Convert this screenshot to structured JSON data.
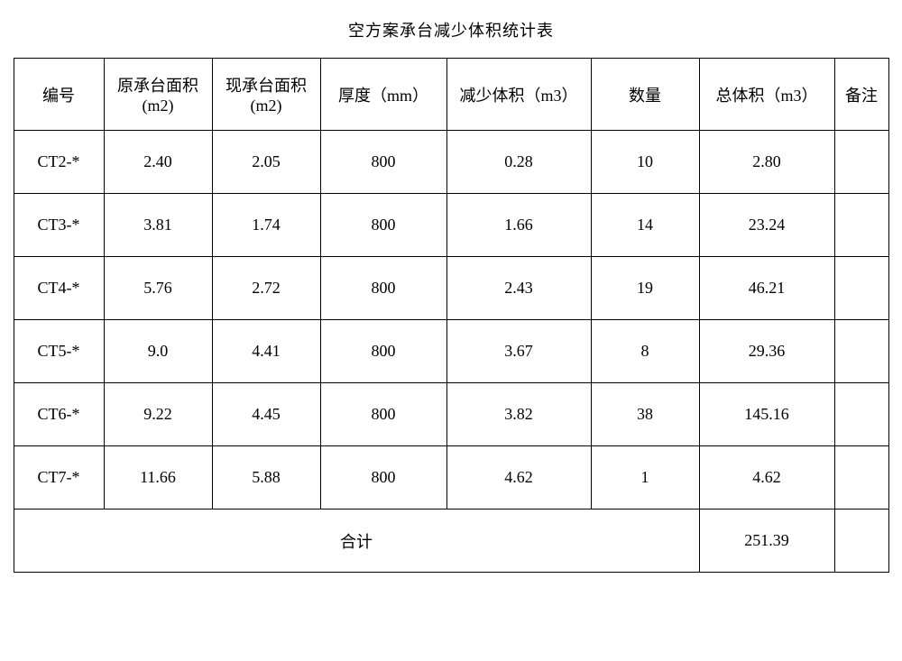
{
  "title": "空方案承台减少体积统计表",
  "columns": {
    "id": "编号",
    "orig": "原承台面积(m2)",
    "curr": "现承台面积(m2)",
    "thick": "厚度（mm）",
    "redv": "减少体积（m3）",
    "qty": "数量",
    "totv": "总体积（m3）",
    "note": "备注"
  },
  "rows": [
    {
      "id": "CT2-*",
      "orig": "2.40",
      "curr": "2.05",
      "thick": "800",
      "redv": "0.28",
      "qty": "10",
      "totv": "2.80",
      "note": ""
    },
    {
      "id": "CT3-*",
      "orig": "3.81",
      "curr": "1.74",
      "thick": "800",
      "redv": "1.66",
      "qty": "14",
      "totv": "23.24",
      "note": ""
    },
    {
      "id": "CT4-*",
      "orig": "5.76",
      "curr": "2.72",
      "thick": "800",
      "redv": "2.43",
      "qty": "19",
      "totv": "46.21",
      "note": ""
    },
    {
      "id": "CT5-*",
      "orig": "9.0",
      "curr": "4.41",
      "thick": "800",
      "redv": "3.67",
      "qty": "8",
      "totv": "29.36",
      "note": ""
    },
    {
      "id": "CT6-*",
      "orig": "9.22",
      "curr": "4.45",
      "thick": "800",
      "redv": "3.82",
      "qty": "38",
      "totv": "145.16",
      "note": ""
    },
    {
      "id": "CT7-*",
      "orig": "11.66",
      "curr": "5.88",
      "thick": "800",
      "redv": "4.62",
      "qty": "1",
      "totv": "4.62",
      "note": ""
    }
  ],
  "summary": {
    "label": "合计",
    "total": "251.39"
  }
}
